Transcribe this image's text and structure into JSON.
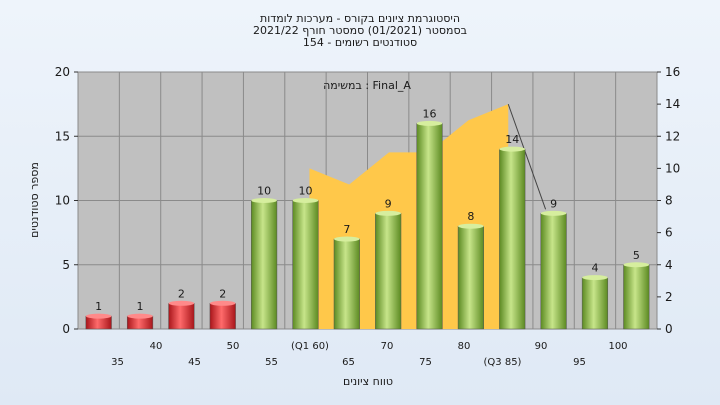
{
  "chart_data": {
    "type": "bar",
    "title_lines": [
      "היסטוגרמת ציונים בקורס - מערכות לומדות",
      "בסמסטר  (01/2021)  סמסטר חורף 2021/22",
      "סטודנטים רשומים - 154"
    ],
    "annotation": "במשימה : Final_A",
    "xlabel": "טווח ציונים",
    "ylabel": "מספר סטודנטים",
    "ylim": [
      0,
      20
    ],
    "yticks": [
      0,
      5,
      10,
      15,
      20
    ],
    "y2lim": [
      0,
      16
    ],
    "y2ticks": [
      0,
      2,
      4,
      6,
      8,
      10,
      12,
      14,
      16
    ],
    "categories": [
      "35",
      "40",
      "45",
      "50",
      "55",
      "(Q1 60)",
      "65",
      "70",
      "75",
      "80",
      "(Q3 85)",
      "90",
      "95",
      "100"
    ],
    "values": [
      1,
      1,
      2,
      2,
      10,
      10,
      7,
      9,
      16,
      8,
      14,
      9,
      4,
      5
    ],
    "bar_colors": [
      "#e0282e",
      "#e0282e",
      "#e0282e",
      "#e0282e",
      "#8cbf3f",
      "#8cbf3f",
      "#8cbf3f",
      "#8cbf3f",
      "#8cbf3f",
      "#8cbf3f",
      "#8cbf3f",
      "#8cbf3f",
      "#8cbf3f",
      "#8cbf3f"
    ],
    "area": {
      "x_start_index": 5,
      "x_end_index": 10,
      "y2_values": [
        10,
        9,
        11,
        11,
        13,
        14
      ],
      "color": "#ffc84a"
    },
    "grid": true,
    "plot_background": "#c0c0c0"
  }
}
